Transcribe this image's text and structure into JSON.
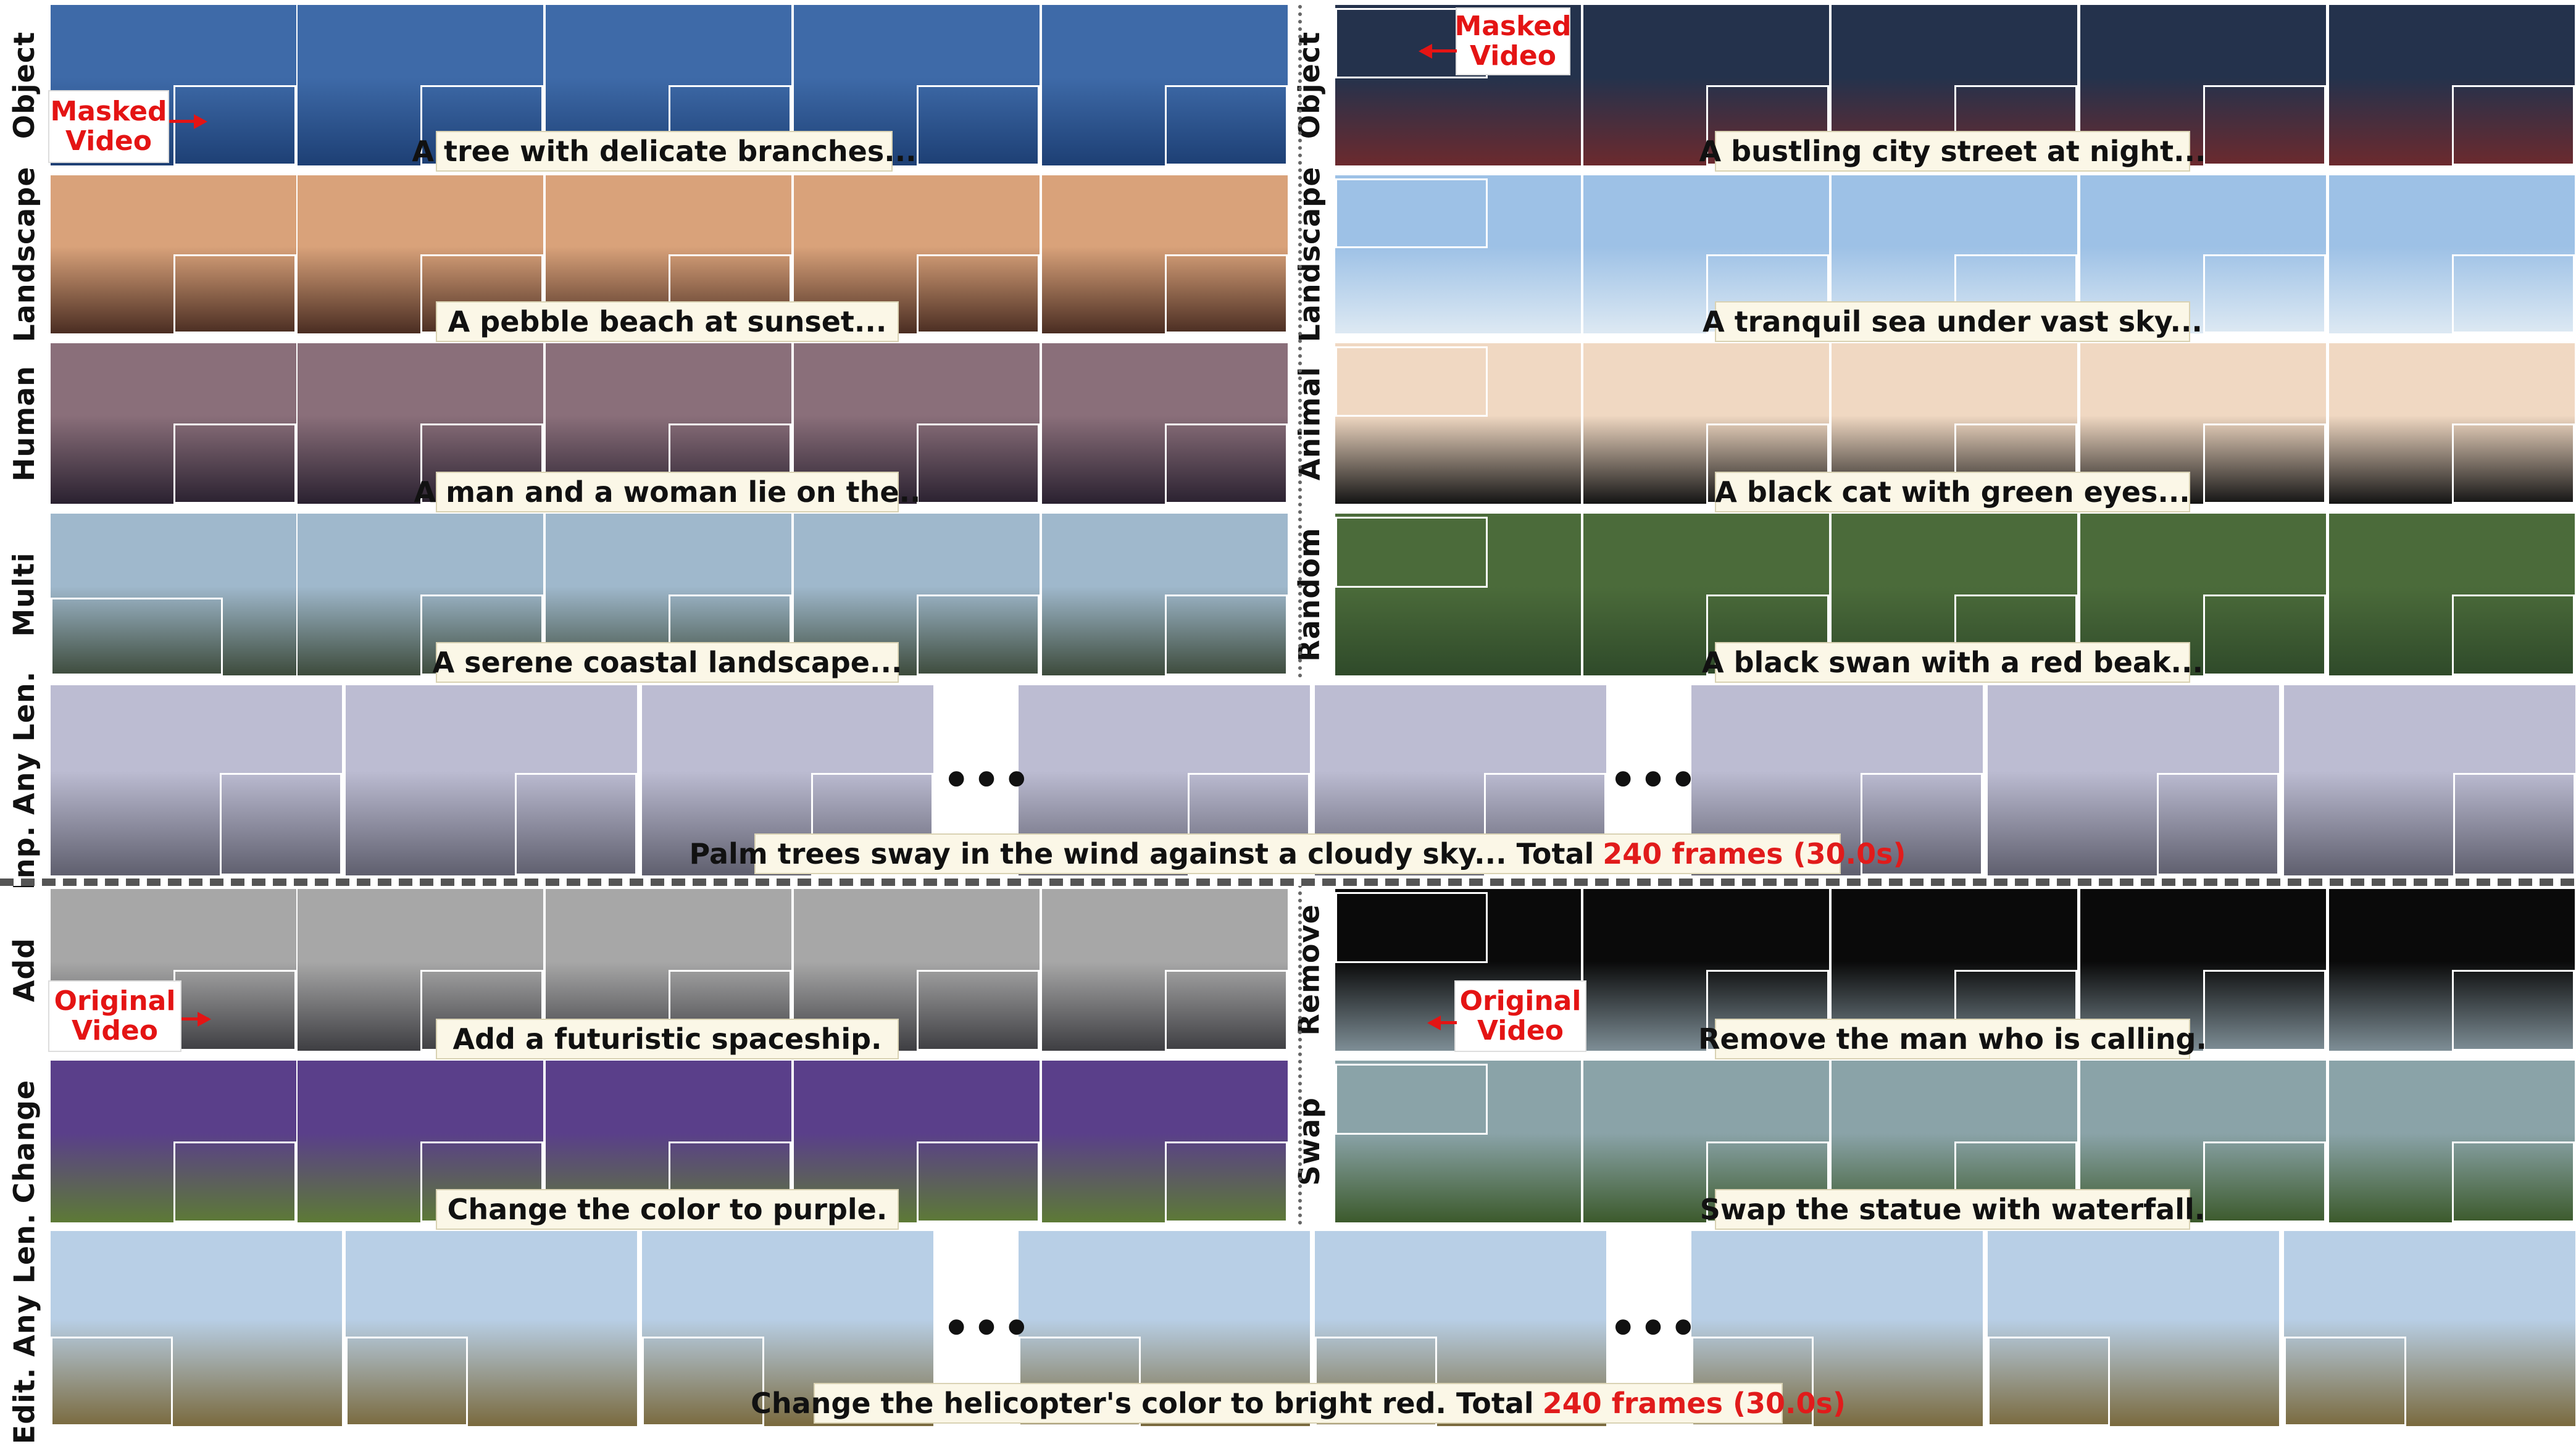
{
  "rows": {
    "object_l": {
      "label": "Object",
      "caption": "A tree with delicate branches...",
      "colors": [
        "#3e6aa8",
        "#1d3f74"
      ],
      "inset": [
        "#1a2a48",
        "#7d93b7"
      ]
    },
    "landscape_l": {
      "label": "Landscape",
      "caption": "A pebble beach at sunset...",
      "colors": [
        "#d9a27a",
        "#4a2d22"
      ],
      "inset": [
        "#2d1e18",
        "#000000"
      ]
    },
    "human_l": {
      "label": "Human",
      "caption": "A man and a woman lie on the..",
      "colors": [
        "#8a6f7a",
        "#2a2130"
      ],
      "inset": [
        "#3a3036",
        "#6a5a60"
      ]
    },
    "multi_l": {
      "label": "Multi",
      "caption": "A serene coastal landscape...",
      "colors": [
        "#9fb8cc",
        "#3d4b3c"
      ],
      "inset": [
        "#7d8e96",
        "#2a3229"
      ]
    },
    "object_r": {
      "label": "Object",
      "caption": "A bustling city street at night...",
      "colors": [
        "#24324c",
        "#6c2a2e"
      ],
      "inset": [
        "#1f2a3d",
        "#4a3b3a"
      ]
    },
    "landscape_r": {
      "label": "Landscape",
      "caption": "A tranquil sea under vast sky...",
      "colors": [
        "#9dc1e6",
        "#dde9f3"
      ],
      "inset": [
        "#8fb6de",
        "#101010"
      ]
    },
    "animal_r": {
      "label": "Animal",
      "caption": "A black cat with green eyes...",
      "colors": [
        "#f0d8c2",
        "#141414"
      ],
      "inset": [
        "#efd6c0",
        "#0f0f0f"
      ]
    },
    "random_r": {
      "label": "Random",
      "caption": "A black swan with a red beak...",
      "colors": [
        "#4b6b3a",
        "#2f4a2a"
      ],
      "inset": [
        "#5a7a45",
        "#1e2a1a"
      ]
    },
    "inp_any": {
      "label": "Inp. Any Len.",
      "caption": "Palm trees sway in the wind against a cloudy sky... Total",
      "caption_red": "240 frames (30.0s)",
      "colors": [
        "#bcbcd2",
        "#5f5f6e"
      ],
      "inset": [
        "#c8c8d8",
        "#404048"
      ]
    },
    "add_l": {
      "label": "Add",
      "caption": "Add a futuristic spaceship.",
      "colors": [
        "#a7a7a7",
        "#3e3e42"
      ],
      "inset": [
        "#b5b5b5",
        "#505052"
      ]
    },
    "change_l": {
      "label": "Change",
      "caption": "Change the color to purple.",
      "colors": [
        "#5a3f8a",
        "#5d7a36"
      ],
      "inset": [
        "#e0872d",
        "#5d7a36"
      ]
    },
    "remove_r": {
      "label": "Remove",
      "caption": "Remove the man who is calling.",
      "colors": [
        "#0a0a0a",
        "#7e8e96"
      ],
      "inset": [
        "#101010",
        "#8a9aa0"
      ]
    },
    "swap_r": {
      "label": "Swap",
      "caption": "Swap the statue with waterfall.",
      "colors": [
        "#8aa3a8",
        "#3c5a2c"
      ],
      "inset": [
        "#94a9ad",
        "#3f5e2f"
      ]
    },
    "edit_any": {
      "label": "Edit. Any Len.",
      "caption": "Change the helicopter's color to bright red. Total",
      "caption_red": "240 frames (30.0s)",
      "colors": [
        "#b8cfe6",
        "#7a6a3e"
      ],
      "inset": [
        "#c4d5e6",
        "#6b6040"
      ]
    }
  },
  "callouts": {
    "masked_l": "Masked\nVideo",
    "masked_r": "Masked\nVideo",
    "original_l": "Original\nVideo",
    "original_r": "Original\nVideo"
  },
  "ellipsis": "•••"
}
